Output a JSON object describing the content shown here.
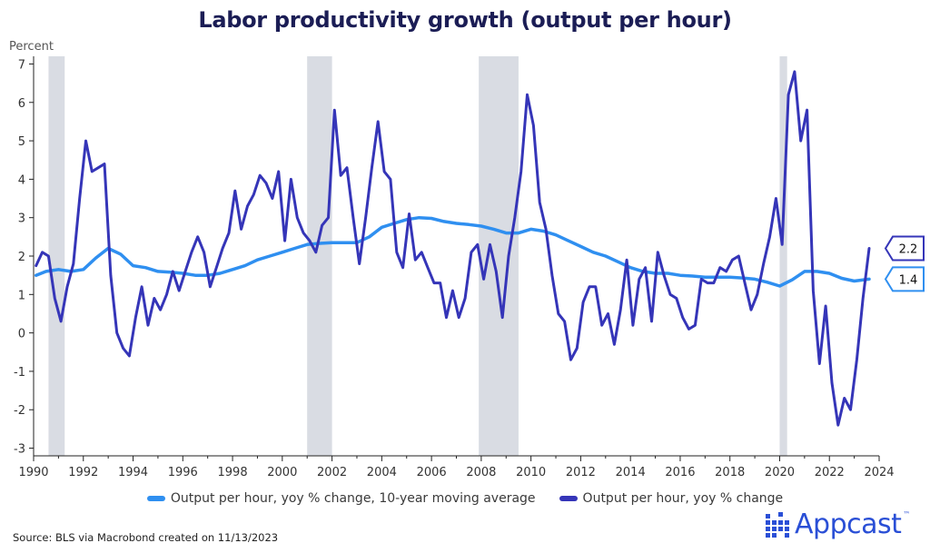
{
  "title": "Labor productivity growth (output per hour)",
  "source": "Source: BLS via Macrobond created on 11/13/2023",
  "brand": {
    "name": "Appcast",
    "trademark": "™",
    "icon": "appcast-dots-logo",
    "color": "#2a4fd6"
  },
  "chart_data": {
    "type": "line",
    "title": "Labor productivity growth (output per hour)",
    "ylabel": "Percent",
    "xlabel": "",
    "xlim": [
      1990,
      2024
    ],
    "ylim": [
      -3.2,
      7.2
    ],
    "x_ticks": [
      "1990",
      "1992",
      "1994",
      "1996",
      "1998",
      "2000",
      "2002",
      "2004",
      "2006",
      "2008",
      "2010",
      "2012",
      "2014",
      "2016",
      "2018",
      "2020",
      "2022",
      "2024"
    ],
    "y_ticks": [
      "-3",
      "-2",
      "-1",
      "0",
      "1",
      "2",
      "3",
      "4",
      "5",
      "6",
      "7"
    ],
    "grid": false,
    "legend_position": "bottom",
    "recessions": [
      [
        1990.6,
        1991.25
      ],
      [
        2001.0,
        2002.0
      ],
      [
        2007.9,
        2009.5
      ],
      [
        2020.0,
        2020.3
      ]
    ],
    "series": [
      {
        "name": "Output per hour, yoy % change, 10-year moving average",
        "color": "#2f8ff0",
        "end_label": "1.4",
        "points": [
          [
            1990.1,
            1.5
          ],
          [
            1990.5,
            1.6
          ],
          [
            1991,
            1.65
          ],
          [
            1991.5,
            1.6
          ],
          [
            1992,
            1.65
          ],
          [
            1992.5,
            1.95
          ],
          [
            1993,
            2.2
          ],
          [
            1993.5,
            2.05
          ],
          [
            1994,
            1.75
          ],
          [
            1994.5,
            1.7
          ],
          [
            1995,
            1.6
          ],
          [
            1995.5,
            1.58
          ],
          [
            1996,
            1.55
          ],
          [
            1996.5,
            1.5
          ],
          [
            1997,
            1.5
          ],
          [
            1997.5,
            1.55
          ],
          [
            1998,
            1.65
          ],
          [
            1998.5,
            1.75
          ],
          [
            1999,
            1.9
          ],
          [
            1999.5,
            2.0
          ],
          [
            2000,
            2.1
          ],
          [
            2000.5,
            2.2
          ],
          [
            2001,
            2.3
          ],
          [
            2001.5,
            2.33
          ],
          [
            2002,
            2.35
          ],
          [
            2002.5,
            2.35
          ],
          [
            2003,
            2.35
          ],
          [
            2003.5,
            2.5
          ],
          [
            2004,
            2.75
          ],
          [
            2004.5,
            2.85
          ],
          [
            2005,
            2.95
          ],
          [
            2005.5,
            3.0
          ],
          [
            2006,
            2.98
          ],
          [
            2006.5,
            2.9
          ],
          [
            2007,
            2.85
          ],
          [
            2007.5,
            2.82
          ],
          [
            2008,
            2.78
          ],
          [
            2008.5,
            2.7
          ],
          [
            2009,
            2.6
          ],
          [
            2009.5,
            2.6
          ],
          [
            2010,
            2.7
          ],
          [
            2010.5,
            2.65
          ],
          [
            2011,
            2.55
          ],
          [
            2011.5,
            2.4
          ],
          [
            2012,
            2.25
          ],
          [
            2012.5,
            2.1
          ],
          [
            2013,
            2.0
          ],
          [
            2013.5,
            1.85
          ],
          [
            2014,
            1.7
          ],
          [
            2014.5,
            1.6
          ],
          [
            2015,
            1.55
          ],
          [
            2015.5,
            1.55
          ],
          [
            2016,
            1.5
          ],
          [
            2016.5,
            1.48
          ],
          [
            2017,
            1.45
          ],
          [
            2017.5,
            1.45
          ],
          [
            2018,
            1.45
          ],
          [
            2018.5,
            1.43
          ],
          [
            2019,
            1.4
          ],
          [
            2019.5,
            1.32
          ],
          [
            2020,
            1.22
          ],
          [
            2020.5,
            1.38
          ],
          [
            2021,
            1.6
          ],
          [
            2021.5,
            1.6
          ],
          [
            2022,
            1.55
          ],
          [
            2022.5,
            1.42
          ],
          [
            2023,
            1.35
          ],
          [
            2023.6,
            1.4
          ]
        ]
      },
      {
        "name": "Output per hour, yoy % change",
        "color": "#3535b8",
        "end_label": "2.2",
        "points": [
          [
            1990.1,
            1.75
          ],
          [
            1990.35,
            2.1
          ],
          [
            1990.6,
            2.0
          ],
          [
            1990.85,
            0.9
          ],
          [
            1991.1,
            0.3
          ],
          [
            1991.35,
            1.2
          ],
          [
            1991.6,
            1.8
          ],
          [
            1991.85,
            3.5
          ],
          [
            1992.1,
            5.0
          ],
          [
            1992.35,
            4.2
          ],
          [
            1992.6,
            4.3
          ],
          [
            1992.85,
            4.4
          ],
          [
            1993.1,
            1.5
          ],
          [
            1993.35,
            0.0
          ],
          [
            1993.6,
            -0.4
          ],
          [
            1993.85,
            -0.6
          ],
          [
            1994.1,
            0.4
          ],
          [
            1994.35,
            1.2
          ],
          [
            1994.6,
            0.2
          ],
          [
            1994.85,
            0.9
          ],
          [
            1995.1,
            0.6
          ],
          [
            1995.35,
            1.0
          ],
          [
            1995.6,
            1.6
          ],
          [
            1995.85,
            1.1
          ],
          [
            1996.1,
            1.6
          ],
          [
            1996.35,
            2.1
          ],
          [
            1996.6,
            2.5
          ],
          [
            1996.85,
            2.1
          ],
          [
            1997.1,
            1.2
          ],
          [
            1997.35,
            1.7
          ],
          [
            1997.6,
            2.2
          ],
          [
            1997.85,
            2.6
          ],
          [
            1998.1,
            3.7
          ],
          [
            1998.35,
            2.7
          ],
          [
            1998.6,
            3.3
          ],
          [
            1998.85,
            3.6
          ],
          [
            1999.1,
            4.1
          ],
          [
            1999.35,
            3.9
          ],
          [
            1999.6,
            3.5
          ],
          [
            1999.85,
            4.2
          ],
          [
            2000.1,
            2.4
          ],
          [
            2000.35,
            4.0
          ],
          [
            2000.6,
            3.0
          ],
          [
            2000.85,
            2.6
          ],
          [
            2001.1,
            2.4
          ],
          [
            2001.35,
            2.1
          ],
          [
            2001.6,
            2.8
          ],
          [
            2001.85,
            3.0
          ],
          [
            2002.1,
            5.8
          ],
          [
            2002.35,
            4.1
          ],
          [
            2002.6,
            4.3
          ],
          [
            2002.85,
            3.0
          ],
          [
            2003.1,
            1.8
          ],
          [
            2003.35,
            3.0
          ],
          [
            2003.6,
            4.3
          ],
          [
            2003.85,
            5.5
          ],
          [
            2004.1,
            4.2
          ],
          [
            2004.35,
            4.0
          ],
          [
            2004.6,
            2.1
          ],
          [
            2004.85,
            1.7
          ],
          [
            2005.1,
            3.1
          ],
          [
            2005.35,
            1.9
          ],
          [
            2005.6,
            2.1
          ],
          [
            2005.85,
            1.7
          ],
          [
            2006.1,
            1.3
          ],
          [
            2006.35,
            1.3
          ],
          [
            2006.6,
            0.4
          ],
          [
            2006.85,
            1.1
          ],
          [
            2007.1,
            0.4
          ],
          [
            2007.35,
            0.9
          ],
          [
            2007.6,
            2.1
          ],
          [
            2007.85,
            2.3
          ],
          [
            2008.1,
            1.4
          ],
          [
            2008.35,
            2.3
          ],
          [
            2008.6,
            1.6
          ],
          [
            2008.85,
            0.4
          ],
          [
            2009.1,
            2.0
          ],
          [
            2009.35,
            3.0
          ],
          [
            2009.6,
            4.2
          ],
          [
            2009.85,
            6.2
          ],
          [
            2010.1,
            5.4
          ],
          [
            2010.35,
            3.4
          ],
          [
            2010.6,
            2.7
          ],
          [
            2010.85,
            1.5
          ],
          [
            2011.1,
            0.5
          ],
          [
            2011.35,
            0.3
          ],
          [
            2011.6,
            -0.7
          ],
          [
            2011.85,
            -0.4
          ],
          [
            2012.1,
            0.8
          ],
          [
            2012.35,
            1.2
          ],
          [
            2012.6,
            1.2
          ],
          [
            2012.85,
            0.2
          ],
          [
            2013.1,
            0.5
          ],
          [
            2013.35,
            -0.3
          ],
          [
            2013.6,
            0.6
          ],
          [
            2013.85,
            1.9
          ],
          [
            2014.1,
            0.2
          ],
          [
            2014.35,
            1.4
          ],
          [
            2014.6,
            1.7
          ],
          [
            2014.85,
            0.3
          ],
          [
            2015.1,
            2.1
          ],
          [
            2015.35,
            1.5
          ],
          [
            2015.6,
            1.0
          ],
          [
            2015.85,
            0.9
          ],
          [
            2016.1,
            0.4
          ],
          [
            2016.35,
            0.1
          ],
          [
            2016.6,
            0.2
          ],
          [
            2016.85,
            1.4
          ],
          [
            2017.1,
            1.3
          ],
          [
            2017.35,
            1.3
          ],
          [
            2017.6,
            1.7
          ],
          [
            2017.85,
            1.6
          ],
          [
            2018.1,
            1.9
          ],
          [
            2018.35,
            2.0
          ],
          [
            2018.6,
            1.3
          ],
          [
            2018.85,
            0.6
          ],
          [
            2019.1,
            1.0
          ],
          [
            2019.35,
            1.8
          ],
          [
            2019.6,
            2.5
          ],
          [
            2019.85,
            3.5
          ],
          [
            2020.1,
            2.3
          ],
          [
            2020.35,
            6.2
          ],
          [
            2020.6,
            6.8
          ],
          [
            2020.85,
            5.0
          ],
          [
            2021.1,
            5.8
          ],
          [
            2021.35,
            1.1
          ],
          [
            2021.6,
            -0.8
          ],
          [
            2021.85,
            0.7
          ],
          [
            2022.1,
            -1.3
          ],
          [
            2022.35,
            -2.4
          ],
          [
            2022.6,
            -1.7
          ],
          [
            2022.85,
            -2.0
          ],
          [
            2023.1,
            -0.7
          ],
          [
            2023.35,
            0.9
          ],
          [
            2023.6,
            2.2
          ]
        ]
      }
    ]
  }
}
